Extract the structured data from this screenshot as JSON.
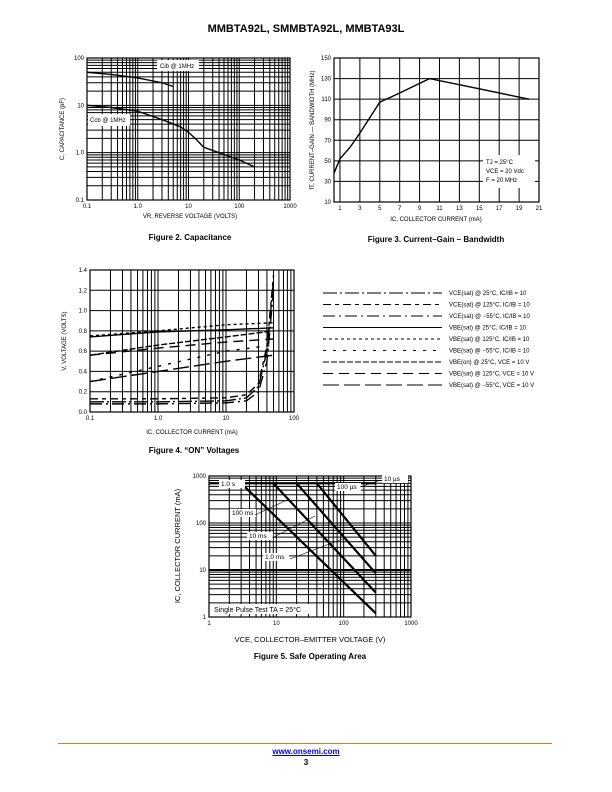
{
  "header": {
    "title": "MMBTA92L, SMMBTA92L, MMBTA93L"
  },
  "footer": {
    "website": "www.onsemi.com",
    "page_number": "3"
  },
  "chart_data": [
    {
      "id": "fig2",
      "type": "line",
      "caption": "Figure 2. Capacitance",
      "xlabel": "VR, REVERSE VOLTAGE (VOLTS)",
      "ylabel": "C, CAPACITANCE (pF)",
      "xscale": "log",
      "yscale": "log",
      "xlim": [
        0.1,
        1000
      ],
      "ylim": [
        0.1,
        100
      ],
      "grid": true,
      "xticks": [
        "0.1",
        "1.0",
        "10",
        "100",
        "1000"
      ],
      "yticks": [
        "0.1",
        "1.0",
        "10",
        "100"
      ],
      "series": [
        {
          "name": "Cib @ 1MHz",
          "x": [
            0.1,
            0.3,
            1,
            3,
            5
          ],
          "y": [
            50,
            45,
            38,
            30,
            25
          ]
        },
        {
          "name": "Ccb @ 1MHz",
          "x": [
            0.1,
            0.3,
            1,
            3,
            7,
            10,
            15,
            20,
            40,
            100,
            200
          ],
          "y": [
            10,
            9,
            7.5,
            5,
            3.5,
            2.7,
            1.8,
            1.3,
            1.0,
            0.7,
            0.5
          ]
        }
      ]
    },
    {
      "id": "fig3",
      "type": "line",
      "caption": "Figure 3. Current–Gain – Bandwidth",
      "xlabel": "IC, COLLECTOR CURRENT (mA)",
      "ylabel": "fT, CURRENT–GAIN — BANDWIDTH (MHz)",
      "xscale": "linear",
      "yscale": "linear",
      "xlim": [
        0.4,
        21
      ],
      "ylim": [
        10,
        150
      ],
      "grid": true,
      "xticks": [
        "1",
        "3",
        "5",
        "7",
        "9",
        "11",
        "13",
        "15",
        "17",
        "19",
        "21"
      ],
      "yticks": [
        "10",
        "30",
        "50",
        "70",
        "90",
        "110",
        "130",
        "150"
      ],
      "annotation": [
        "TJ = 25°C",
        "VCE = 20 Vdc",
        "F = 20 MHz"
      ],
      "series": [
        {
          "name": "fT",
          "x": [
            0.4,
            1,
            2,
            3,
            5,
            7,
            10,
            15,
            20
          ],
          "y": [
            38,
            52,
            63,
            77,
            107,
            116,
            130,
            120,
            110
          ]
        }
      ]
    },
    {
      "id": "fig4",
      "type": "line",
      "caption": "Figure 4. “ON” Voltages",
      "xlabel": "IC, COLLECTOR CURRENT (mA)",
      "ylabel": "V, VOLTAGE (VOLTS)",
      "xscale": "log",
      "yscale": "linear",
      "xlim": [
        0.1,
        100
      ],
      "ylim": [
        0,
        1.4
      ],
      "grid": true,
      "xticks": [
        "0.1",
        "1.0",
        "10",
        "100"
      ],
      "yticks": [
        "0.0",
        "0.2",
        "0.4",
        "0.6",
        "0.8",
        "1.0",
        "1.2",
        "1.4"
      ],
      "legend_position": "right",
      "series": [
        {
          "name": "VCE(sat) @ 25°C, IC/IB = 10",
          "dash": "14,3,2,3",
          "x": [
            0.1,
            1,
            10,
            20,
            30,
            40,
            50
          ],
          "y": [
            0.1,
            0.1,
            0.11,
            0.14,
            0.25,
            0.6,
            1.3
          ]
        },
        {
          "name": "VCE(sat) @ 125°C, IC/IB = 10",
          "dash": "8,4,4,4",
          "x": [
            0.1,
            1,
            10,
            20,
            30,
            40,
            50
          ],
          "y": [
            0.13,
            0.13,
            0.14,
            0.17,
            0.28,
            0.65,
            1.35
          ]
        },
        {
          "name": "VCE(sat) @ −55°C, IC/IB = 10",
          "dash": "12,4,2,4",
          "x": [
            0.1,
            1,
            10,
            20,
            30,
            40,
            50
          ],
          "y": [
            0.08,
            0.08,
            0.09,
            0.11,
            0.2,
            0.5,
            1.2
          ]
        },
        {
          "name": "VBE(sat) @ 25°C, IC/IB = 10",
          "dash": "",
          "x": [
            0.1,
            1,
            10,
            50
          ],
          "y": [
            0.74,
            0.79,
            0.81,
            0.83
          ]
        },
        {
          "name": "VBE(sat) @ 125°C, IC/IB = 10",
          "dash": "3,3",
          "x": [
            0.1,
            1,
            10,
            50
          ],
          "y": [
            0.75,
            0.8,
            0.86,
            0.88
          ]
        },
        {
          "name": "VBE(sat) @ −55°C, IC/IB = 10",
          "dash": "3,7",
          "x": [
            0.1,
            1,
            10,
            50
          ],
          "y": [
            0.3,
            0.45,
            0.6,
            0.66
          ]
        },
        {
          "name": "VBE(on) @ 25°C, VCE = 10 V",
          "dash": "6,2",
          "x": [
            0.1,
            1,
            10,
            50
          ],
          "y": [
            0.56,
            0.66,
            0.74,
            0.8
          ]
        },
        {
          "name": "VBE(sat) @ 125°C, VCE = 10 V",
          "dash": "10,6",
          "x": [
            0.1,
            1,
            10,
            50
          ],
          "y": [
            0.56,
            0.63,
            0.69,
            0.72
          ]
        },
        {
          "name": "VBE(sat) @ −55°C, VCE = 10 V",
          "dash": "16,5",
          "x": [
            0.1,
            1,
            10,
            50
          ],
          "y": [
            0.3,
            0.4,
            0.5,
            0.56
          ]
        }
      ]
    },
    {
      "id": "fig5",
      "type": "line",
      "caption": "Figure 5. Safe Operating Area",
      "xlabel": "VCE, COLLECTOR–EMITTER VOLTAGE (V)",
      "ylabel": "IC, COLLECTOR CURRENT (mA)",
      "xscale": "log",
      "yscale": "log",
      "xlim": [
        1,
        1000
      ],
      "ylim": [
        1,
        1000
      ],
      "grid": true,
      "xticks": [
        "1",
        "10",
        "100",
        "1000"
      ],
      "yticks": [
        "1",
        "10",
        "100",
        "1000"
      ],
      "annotation": [
        "Single Pulse Test TA = 25°C"
      ],
      "labels": [
        "1.0 s",
        "100 ms",
        "10 ms",
        "1.0 ms",
        "100 µs",
        "10 µs"
      ],
      "series": [
        {
          "name": "current limit",
          "x": [
            1,
            300
          ],
          "y": [
            700,
            700
          ]
        },
        {
          "name": "1.0 s",
          "x": [
            3,
            300
          ],
          "y": [
            700,
            1.2
          ]
        },
        {
          "name": "100 ms",
          "x": [
            9,
            300
          ],
          "y": [
            700,
            3.3
          ]
        },
        {
          "name": "10 ms",
          "x": [
            20,
            300
          ],
          "y": [
            700,
            8.5
          ]
        },
        {
          "name": "1.0 ms",
          "x": [
            40,
            300
          ],
          "y": [
            700,
            20
          ]
        }
      ]
    }
  ]
}
